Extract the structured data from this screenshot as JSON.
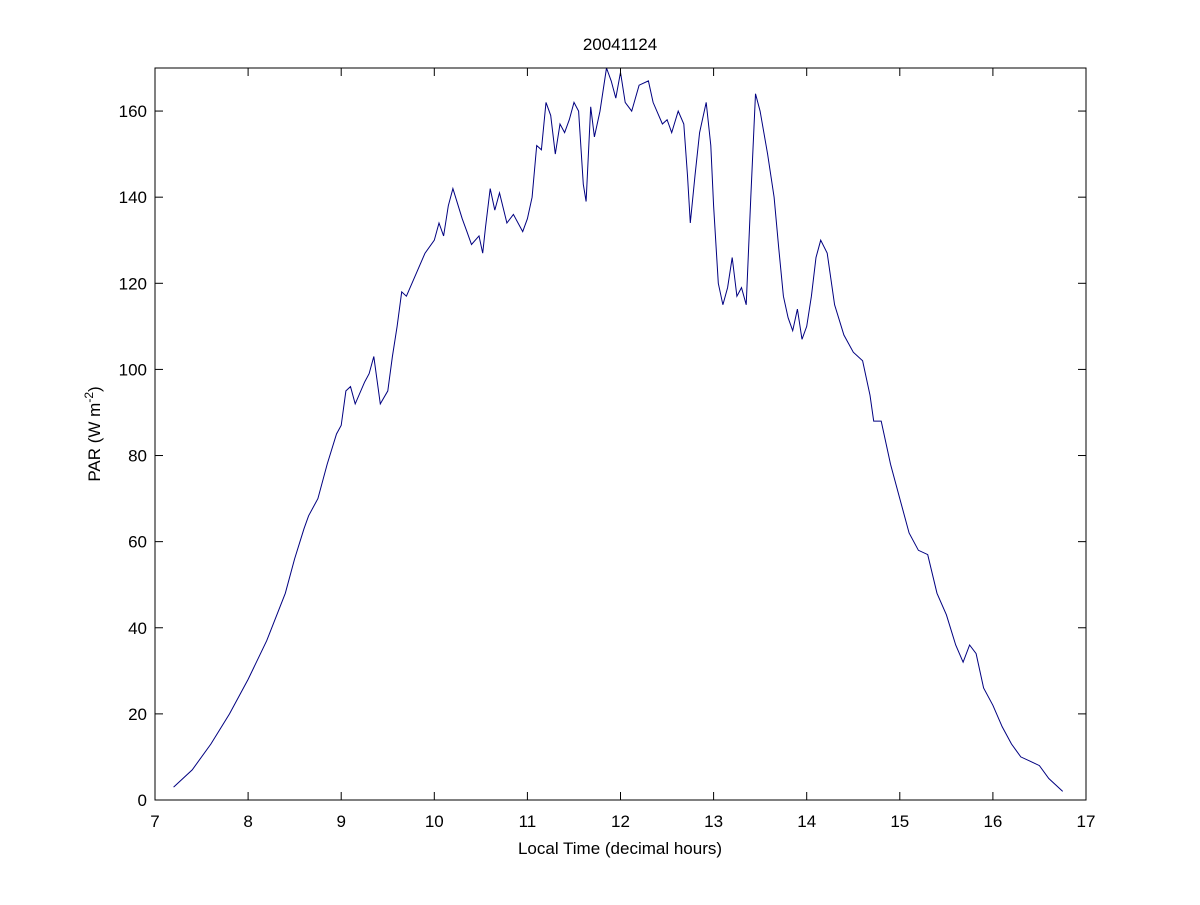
{
  "colors": {
    "line": "#000080",
    "axes": "#000000",
    "background": "#ffffff"
  },
  "chart_data": {
    "type": "line",
    "title": "20041124",
    "xlabel": "Local Time (decimal hours)",
    "ylabel_base": "PAR (W m",
    "ylabel_sup": "-2",
    "ylabel_close": ")",
    "xlim": [
      7,
      17
    ],
    "ylim": [
      0,
      170
    ],
    "xticks": [
      7,
      8,
      9,
      10,
      11,
      12,
      13,
      14,
      15,
      16,
      17
    ],
    "yticks": [
      0,
      20,
      40,
      60,
      80,
      100,
      120,
      140,
      160
    ],
    "grid": false,
    "box": true,
    "series": [
      {
        "points": [
          [
            7.2,
            3
          ],
          [
            7.4,
            7
          ],
          [
            7.6,
            13
          ],
          [
            7.8,
            20
          ],
          [
            8.0,
            28
          ],
          [
            8.2,
            37
          ],
          [
            8.4,
            48
          ],
          [
            8.5,
            56
          ],
          [
            8.6,
            63
          ],
          [
            8.65,
            66
          ],
          [
            8.75,
            70
          ],
          [
            8.85,
            78
          ],
          [
            8.95,
            85
          ],
          [
            9.0,
            87
          ],
          [
            9.05,
            95
          ],
          [
            9.1,
            96
          ],
          [
            9.15,
            92
          ],
          [
            9.25,
            97
          ],
          [
            9.3,
            99
          ],
          [
            9.35,
            103
          ],
          [
            9.42,
            92
          ],
          [
            9.5,
            95
          ],
          [
            9.55,
            103
          ],
          [
            9.6,
            110
          ],
          [
            9.65,
            118
          ],
          [
            9.7,
            117
          ],
          [
            9.8,
            122
          ],
          [
            9.9,
            127
          ],
          [
            10.0,
            130
          ],
          [
            10.05,
            134
          ],
          [
            10.1,
            131
          ],
          [
            10.15,
            138
          ],
          [
            10.2,
            142
          ],
          [
            10.3,
            135
          ],
          [
            10.35,
            132
          ],
          [
            10.4,
            129
          ],
          [
            10.48,
            131
          ],
          [
            10.52,
            127
          ],
          [
            10.55,
            133
          ],
          [
            10.6,
            142
          ],
          [
            10.65,
            137
          ],
          [
            10.7,
            141
          ],
          [
            10.78,
            134
          ],
          [
            10.85,
            136
          ],
          [
            10.95,
            132
          ],
          [
            11.0,
            135
          ],
          [
            11.05,
            140
          ],
          [
            11.1,
            152
          ],
          [
            11.15,
            151
          ],
          [
            11.2,
            162
          ],
          [
            11.25,
            159
          ],
          [
            11.3,
            150
          ],
          [
            11.35,
            157
          ],
          [
            11.4,
            155
          ],
          [
            11.45,
            158
          ],
          [
            11.5,
            162
          ],
          [
            11.55,
            160
          ],
          [
            11.6,
            143
          ],
          [
            11.63,
            139
          ],
          [
            11.68,
            161
          ],
          [
            11.72,
            154
          ],
          [
            11.78,
            160
          ],
          [
            11.85,
            170
          ],
          [
            11.9,
            167
          ],
          [
            11.95,
            163
          ],
          [
            12.0,
            169
          ],
          [
            12.05,
            162
          ],
          [
            12.12,
            160
          ],
          [
            12.2,
            166
          ],
          [
            12.3,
            167
          ],
          [
            12.35,
            162
          ],
          [
            12.45,
            157
          ],
          [
            12.5,
            158
          ],
          [
            12.55,
            155
          ],
          [
            12.62,
            160
          ],
          [
            12.68,
            157
          ],
          [
            12.72,
            145
          ],
          [
            12.75,
            134
          ],
          [
            12.8,
            145
          ],
          [
            12.85,
            155
          ],
          [
            12.92,
            162
          ],
          [
            12.97,
            152
          ],
          [
            13.0,
            138
          ],
          [
            13.05,
            120
          ],
          [
            13.1,
            115
          ],
          [
            13.15,
            119
          ],
          [
            13.2,
            126
          ],
          [
            13.25,
            117
          ],
          [
            13.3,
            119
          ],
          [
            13.35,
            115
          ],
          [
            13.4,
            140
          ],
          [
            13.45,
            164
          ],
          [
            13.5,
            160
          ],
          [
            13.58,
            150
          ],
          [
            13.65,
            140
          ],
          [
            13.7,
            128
          ],
          [
            13.75,
            117
          ],
          [
            13.8,
            112
          ],
          [
            13.85,
            109
          ],
          [
            13.9,
            114
          ],
          [
            13.95,
            107
          ],
          [
            14.0,
            110
          ],
          [
            14.05,
            117
          ],
          [
            14.1,
            126
          ],
          [
            14.15,
            130
          ],
          [
            14.22,
            127
          ],
          [
            14.3,
            115
          ],
          [
            14.4,
            108
          ],
          [
            14.5,
            104
          ],
          [
            14.6,
            102
          ],
          [
            14.68,
            94
          ],
          [
            14.72,
            88
          ],
          [
            14.8,
            88
          ],
          [
            14.9,
            78
          ],
          [
            15.0,
            70
          ],
          [
            15.1,
            62
          ],
          [
            15.2,
            58
          ],
          [
            15.3,
            57
          ],
          [
            15.4,
            48
          ],
          [
            15.5,
            43
          ],
          [
            15.6,
            36
          ],
          [
            15.68,
            32
          ],
          [
            15.75,
            36
          ],
          [
            15.82,
            34
          ],
          [
            15.9,
            26
          ],
          [
            16.0,
            22
          ],
          [
            16.1,
            17
          ],
          [
            16.2,
            13
          ],
          [
            16.3,
            10
          ],
          [
            16.4,
            9
          ],
          [
            16.5,
            8
          ],
          [
            16.6,
            5
          ],
          [
            16.75,
            2
          ]
        ]
      }
    ]
  }
}
